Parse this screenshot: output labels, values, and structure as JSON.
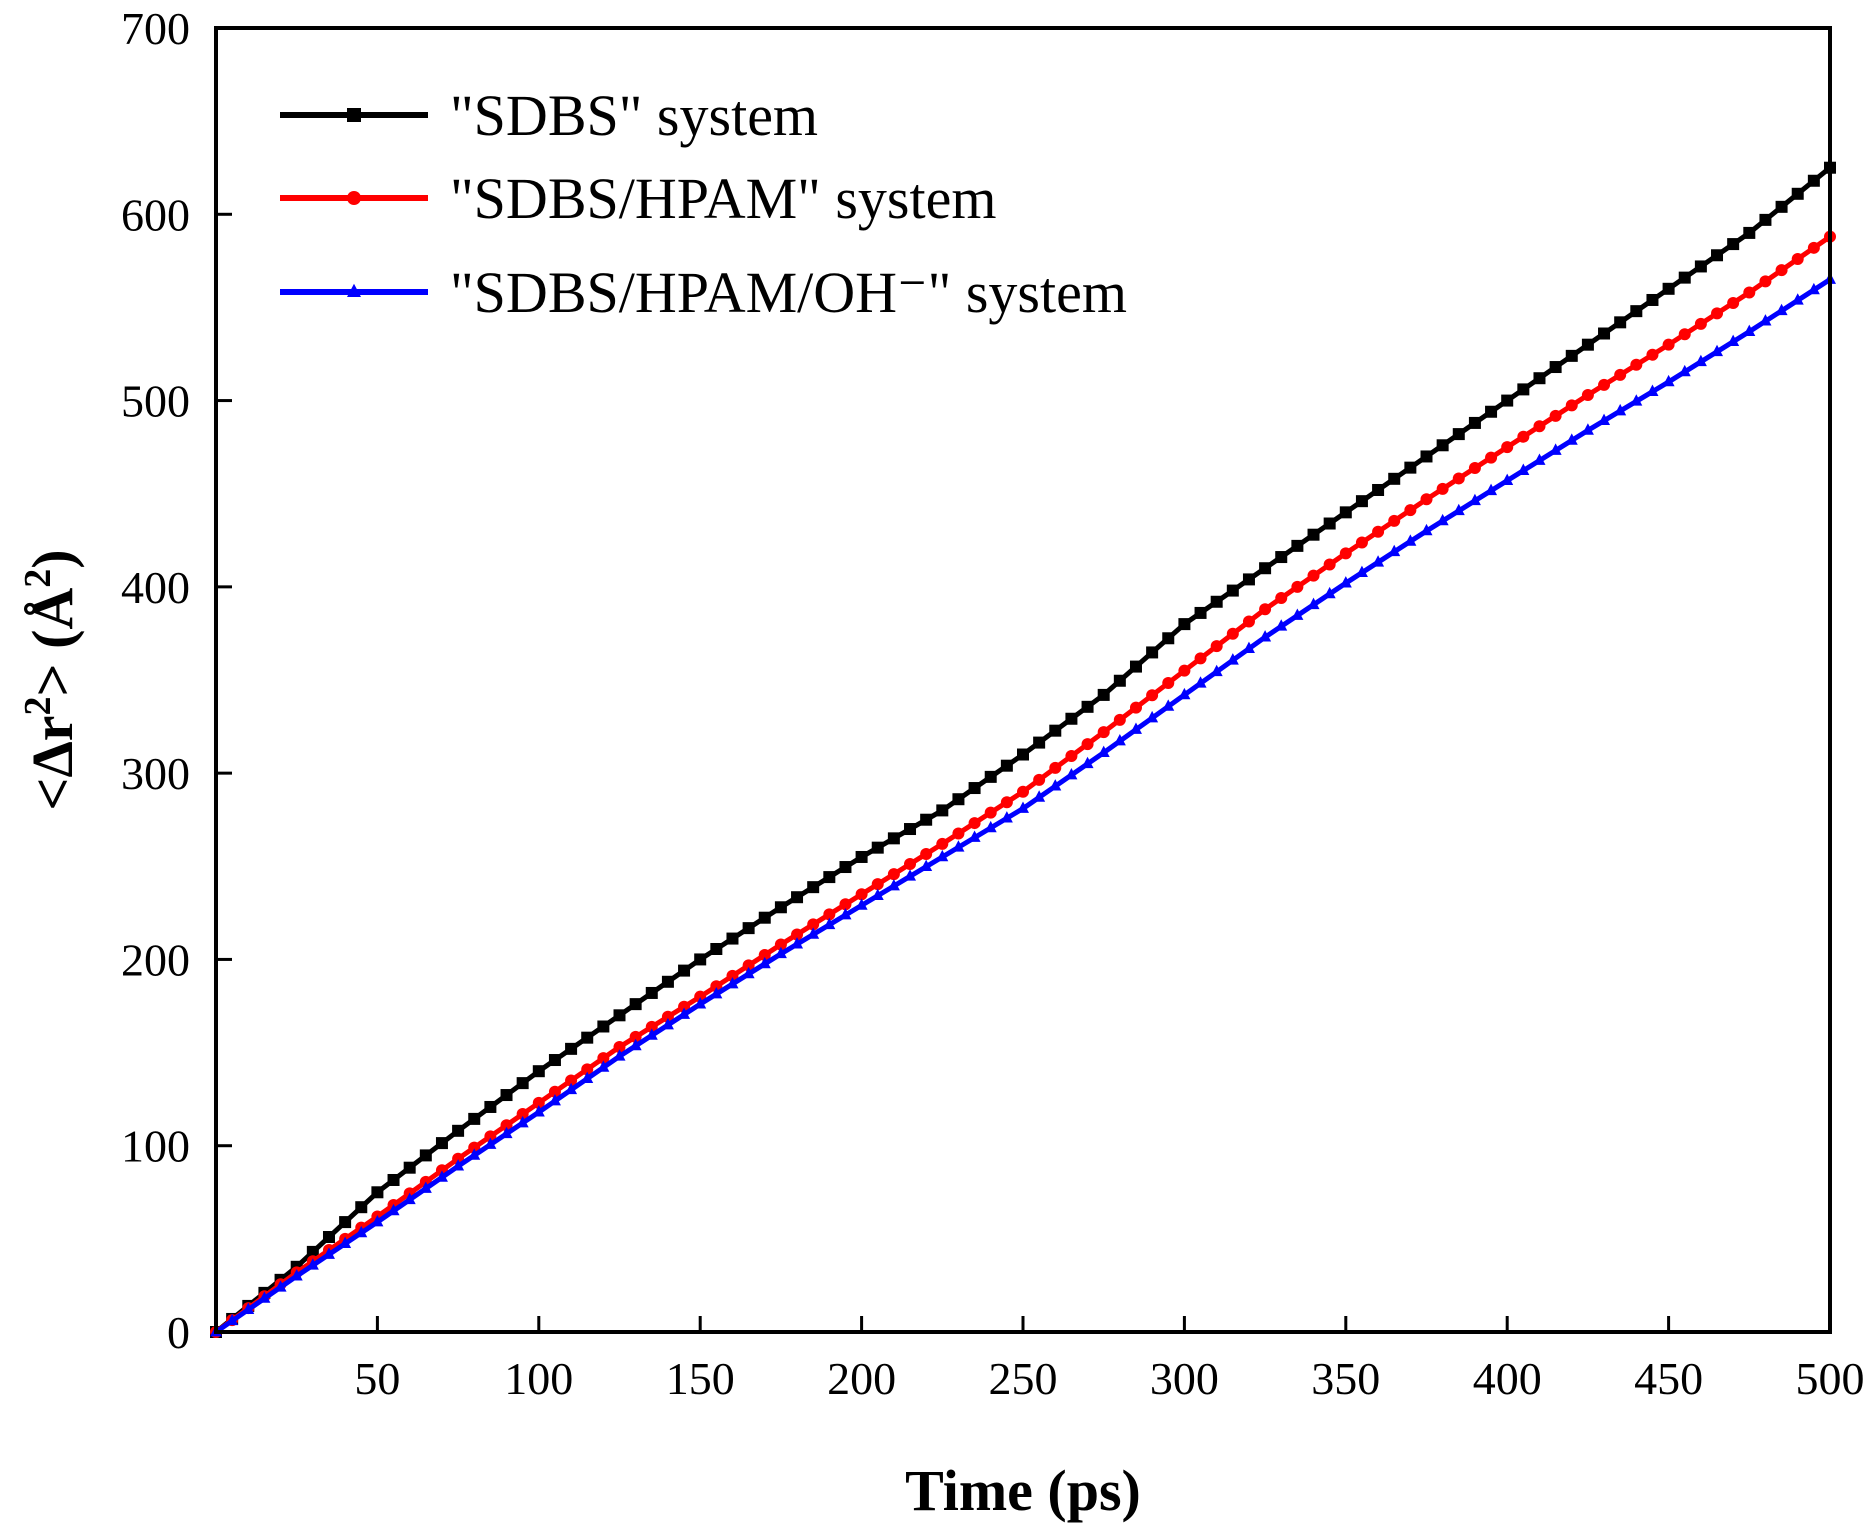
{
  "chart_data": {
    "type": "line",
    "title": "",
    "xlabel": "Time (ps)",
    "ylabel_parts": {
      "prefix": "<Δr",
      "sup1": "2",
      "mid": "> (Å",
      "sup2": "2",
      "suffix": ")"
    },
    "xlim": [
      0,
      500
    ],
    "ylim": [
      0,
      700
    ],
    "x_ticks": [
      50,
      100,
      150,
      200,
      250,
      300,
      350,
      400,
      450,
      500
    ],
    "y_ticks": [
      0,
      100,
      200,
      300,
      400,
      500,
      600,
      700
    ],
    "grid": false,
    "legend_position": "top-left",
    "x": [
      0,
      25,
      50,
      75,
      100,
      125,
      150,
      175,
      200,
      225,
      250,
      275,
      300,
      325,
      350,
      375,
      400,
      425,
      450,
      475,
      500
    ],
    "marker_interval": 5,
    "series": [
      {
        "name": "\"SDBS\" system",
        "color": "#000000",
        "marker": "square",
        "values": [
          0,
          35,
          75,
          108,
          140,
          170,
          200,
          228,
          255,
          280,
          310,
          342,
          380,
          410,
          440,
          470,
          500,
          530,
          560,
          590,
          625
        ]
      },
      {
        "name": "\"SDBS/HPAM\" system",
        "color": "#ff0000",
        "marker": "circle",
        "values": [
          0,
          32,
          62,
          93,
          123,
          153,
          180,
          208,
          235,
          262,
          290,
          322,
          355,
          388,
          418,
          447,
          475,
          503,
          530,
          558,
          588
        ]
      },
      {
        "name": "\"SDBS/HPAM/OH⁻\" system",
        "color": "#0000ff",
        "marker": "triangle",
        "values": [
          0,
          30,
          59,
          89,
          118,
          148,
          176,
          203,
          229,
          255,
          281,
          311,
          342,
          373,
          402,
          430,
          457,
          484,
          510,
          537,
          565
        ]
      }
    ]
  }
}
